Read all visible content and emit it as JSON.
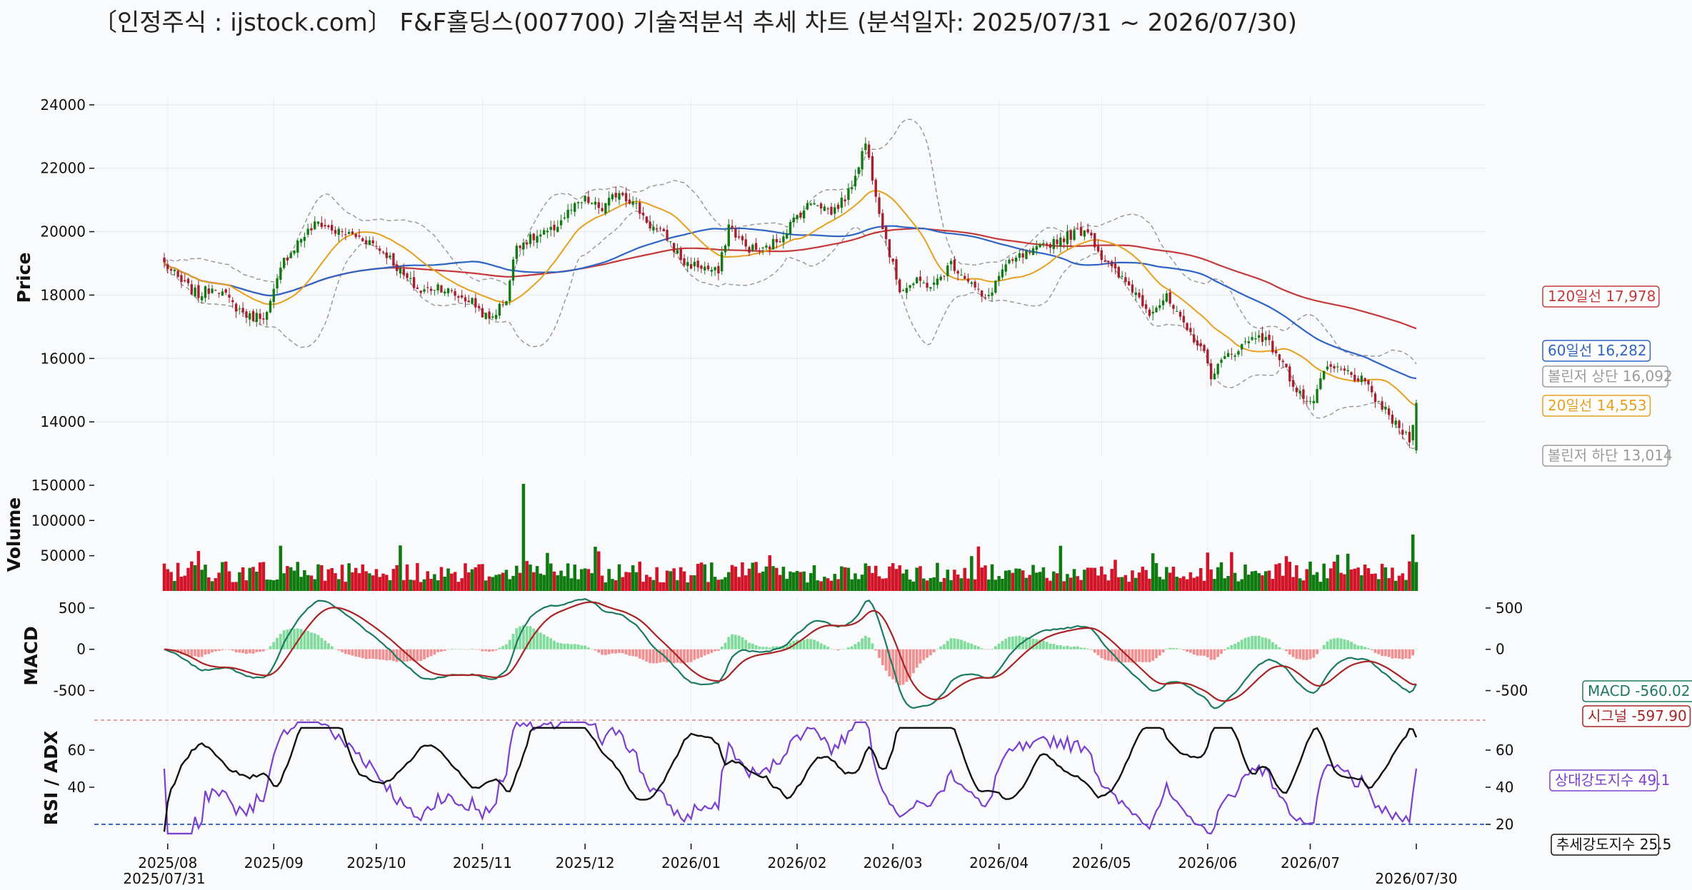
{
  "title": "〔인정주식 : ijstock.com〕 F&F홀딩스(007700) 기술적분석 추세 차트 (분석일자: 2025/07/31 ~ 2026/07/30)",
  "colors": {
    "up": "#127a12",
    "down": "#a51f2d",
    "vol_up": "#0f7a0f",
    "vol_down": "#d21428",
    "ma20": "#e6a01e",
    "ma60": "#2e64c4",
    "ma120": "#c43a3a",
    "boll": "#9a9a9a",
    "macd": "#1b7a60",
    "signal": "#a82424",
    "hist_pos": "#7fdc9a",
    "hist_neg": "#f09090",
    "rsi": "#7b3fd0",
    "adx": "#111111",
    "ref_line": "#3f6bc0",
    "macd_sep": "#d07070"
  },
  "chart_data": [
    {
      "type": "candlestick",
      "ylabel": "Price",
      "ylim": [
        12900,
        24200
      ],
      "yticks": [
        "14000",
        "16000",
        "18000",
        "20000",
        "22000",
        "24000"
      ],
      "xticks": [
        {
          "label": "2025/08",
          "day": 1
        },
        {
          "label": "2025/09",
          "day": 32
        },
        {
          "label": "2025/10",
          "day": 62
        },
        {
          "label": "2025/11",
          "day": 93
        },
        {
          "label": "2025/12",
          "day": 123
        },
        {
          "label": "2026/01",
          "day": 154
        },
        {
          "label": "2026/02",
          "day": 185
        },
        {
          "label": "2026/03",
          "day": 213
        },
        {
          "label": "2026/04",
          "day": 244
        },
        {
          "label": "2026/05",
          "day": 274
        },
        {
          "label": "2026/06",
          "day": 305
        },
        {
          "label": "2026/07",
          "day": 335
        }
      ],
      "start_label": "2025/07/31",
      "end_label": "2026/07/30",
      "close_anchors": [
        [
          0,
          19000
        ],
        [
          5,
          18400
        ],
        [
          10,
          18000
        ],
        [
          15,
          18300
        ],
        [
          20,
          17700
        ],
        [
          25,
          17300
        ],
        [
          30,
          17400
        ],
        [
          35,
          19100
        ],
        [
          40,
          19800
        ],
        [
          45,
          20300
        ],
        [
          50,
          20000
        ],
        [
          55,
          19900
        ],
        [
          60,
          19700
        ],
        [
          65,
          19300
        ],
        [
          70,
          18600
        ],
        [
          75,
          18100
        ],
        [
          80,
          18300
        ],
        [
          85,
          18000
        ],
        [
          90,
          17800
        ],
        [
          95,
          17200
        ],
        [
          100,
          17900
        ],
        [
          103,
          19600
        ],
        [
          108,
          19800
        ],
        [
          113,
          20000
        ],
        [
          118,
          20600
        ],
        [
          123,
          21000
        ],
        [
          128,
          20700
        ],
        [
          133,
          21300
        ],
        [
          138,
          20800
        ],
        [
          142,
          20200
        ],
        [
          147,
          19800
        ],
        [
          152,
          19000
        ],
        [
          157,
          18900
        ],
        [
          162,
          18700
        ],
        [
          165,
          20200
        ],
        [
          170,
          19500
        ],
        [
          175,
          19400
        ],
        [
          180,
          19800
        ],
        [
          185,
          20500
        ],
        [
          190,
          21000
        ],
        [
          195,
          20600
        ],
        [
          200,
          21200
        ],
        [
          205,
          22800
        ],
        [
          210,
          20200
        ],
        [
          213,
          18900
        ],
        [
          215,
          18200
        ],
        [
          220,
          18400
        ],
        [
          225,
          18300
        ],
        [
          230,
          19000
        ],
        [
          235,
          18500
        ],
        [
          240,
          17800
        ],
        [
          245,
          18800
        ],
        [
          250,
          19200
        ],
        [
          255,
          19400
        ],
        [
          260,
          19700
        ],
        [
          265,
          19900
        ],
        [
          270,
          20100
        ],
        [
          274,
          19200
        ],
        [
          278,
          18700
        ],
        [
          283,
          18200
        ],
        [
          288,
          17500
        ],
        [
          293,
          17900
        ],
        [
          298,
          17000
        ],
        [
          303,
          16400
        ],
        [
          306,
          15500
        ],
        [
          310,
          16000
        ],
        [
          315,
          16400
        ],
        [
          320,
          16800
        ],
        [
          325,
          16200
        ],
        [
          330,
          15200
        ],
        [
          335,
          14500
        ],
        [
          340,
          15700
        ],
        [
          345,
          15600
        ],
        [
          350,
          15300
        ],
        [
          355,
          14600
        ],
        [
          360,
          13900
        ],
        [
          364,
          13500
        ],
        [
          366,
          14600
        ]
      ],
      "volume": {
        "ylabel": "Volume",
        "ylim": [
          0,
          160000
        ],
        "yticks": [
          "50000",
          "100000",
          "150000"
        ]
      },
      "indicators_last": {
        "ma120": {
          "label": "120일선 17,978",
          "value": 17978
        },
        "ma60": {
          "label": "60일선 16,282",
          "value": 16282
        },
        "boll_upper": {
          "label": "볼린저 상단 16,092",
          "value": 16092
        },
        "ma20": {
          "label": "20일선 14,553",
          "value": 14553
        },
        "boll_lower": {
          "label": "볼린저 하단 13,014",
          "value": 13014
        }
      }
    },
    {
      "type": "line",
      "ylabel": "MACD",
      "ylim": [
        -780,
        620
      ],
      "yticks": [
        "500",
        "0",
        "-500"
      ],
      "series": [
        {
          "key": "macd",
          "label": "MACD -560.02",
          "value": -560.02
        },
        {
          "key": "signal",
          "label": "시그널 -597.90",
          "value": -597.9
        }
      ]
    },
    {
      "type": "line",
      "ylabel": "RSI / ADX",
      "ylim": [
        15,
        75
      ],
      "yticks": [
        "20",
        "40",
        "60"
      ],
      "ref_line": 20,
      "series": [
        {
          "key": "rsi",
          "label": "상대강도지수 49.1",
          "value": 49.1
        },
        {
          "key": "adx",
          "label": "추세강도지수 25.5",
          "value": 25.5
        }
      ]
    }
  ]
}
